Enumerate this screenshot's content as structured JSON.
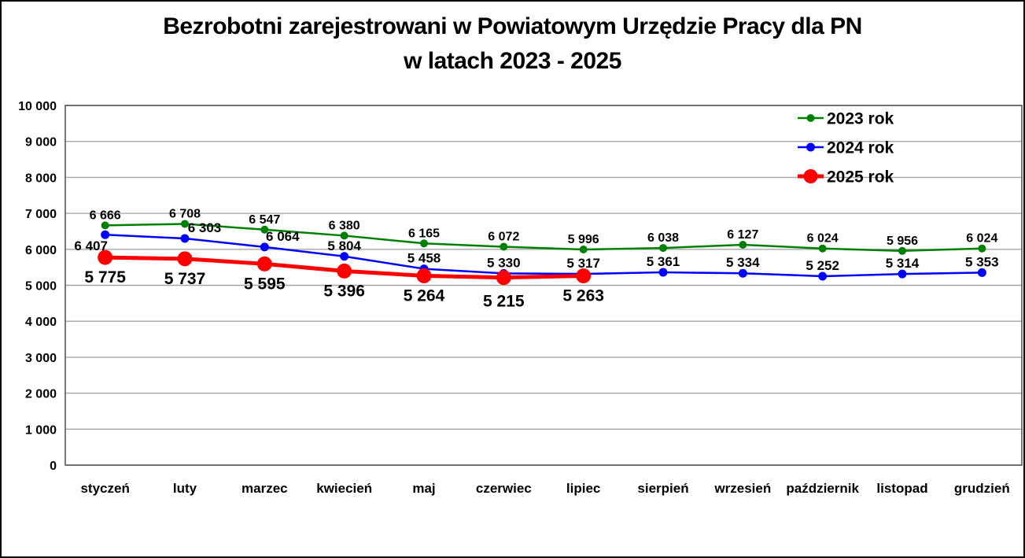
{
  "page": {
    "background_color": "#FFFFFF",
    "frame_border_color": "#000000"
  },
  "title": {
    "line1": "Bezrobotni zarejestrowani w Powiatowym Urzędzie Pracy dla PN",
    "line2": "w latach 2023 - 2025"
  },
  "chart_data": {
    "type": "line",
    "title": "Bezrobotni zarejestrowani w Powiatowym Urzędzie Pracy dla PN w latach 2023 - 2025",
    "xlabel": "",
    "ylabel": "",
    "ylim": [
      0,
      10000
    ],
    "ytick_step": 1000,
    "ytick_labels": [
      "0",
      "1 000",
      "2 000",
      "3 000",
      "4 000",
      "5 000",
      "6 000",
      "7 000",
      "8 000",
      "9 000",
      "10 000"
    ],
    "grid": true,
    "gridline_color": "#A6A6A6",
    "plot_border_color": "#595959",
    "legend_position": "top-right",
    "number_format": "space-thousands",
    "categories": [
      "styczeń",
      "luty",
      "marzec",
      "kwiecień",
      "maj",
      "czerwiec",
      "lipiec",
      "sierpień",
      "wrzesień",
      "październik",
      "listopad",
      "grudzień"
    ],
    "series": [
      {
        "name": "2023 rok",
        "color": "#008000",
        "values": [
          6666,
          6708,
          6547,
          6380,
          6165,
          6072,
          5996,
          6038,
          6127,
          6024,
          5956,
          6024
        ],
        "value_labels": [
          "6 666",
          "6 708",
          "6 547",
          "6 380",
          "6 165",
          "6 072",
          "5 996",
          "6 038",
          "6 127",
          "6 024",
          "5 956",
          "6 024"
        ],
        "marker_radius": 5,
        "line_width": 2.5,
        "label_font_size": 16,
        "label_default_dx": 0,
        "label_default_dy": -8,
        "label_offsets": []
      },
      {
        "name": "2024 rok",
        "color": "#0000FF",
        "values": [
          6407,
          6303,
          6064,
          5804,
          5458,
          5330,
          5317,
          5361,
          5334,
          5252,
          5314,
          5353
        ],
        "value_labels": [
          "6 407",
          "6 303",
          "6 064",
          "5 804",
          "5 458",
          "5 330",
          "5 317",
          "5 361",
          "5 334",
          "5 252",
          "5 314",
          "5 353"
        ],
        "marker_radius": 5.5,
        "line_width": 2.5,
        "label_font_size": 17,
        "label_default_dx": 0,
        "label_default_dy": -8,
        "label_offsets": [
          {
            "i": 0,
            "dx": -18,
            "dy": 20
          },
          {
            "i": 1,
            "dx": 25,
            "dy": -8
          },
          {
            "i": 2,
            "dx": 23,
            "dy": -8
          }
        ]
      },
      {
        "name": "2025 rok",
        "color": "#FF0000",
        "values": [
          5775,
          5737,
          5595,
          5396,
          5264,
          5215,
          5263
        ],
        "value_labels": [
          "5 775",
          "5 737",
          "5 595",
          "5 396",
          "5 264",
          "5 215",
          "5 263"
        ],
        "marker_radius": 9.5,
        "line_width": 5,
        "label_font_size": 21,
        "label_default_dx": 0,
        "label_default_dy": 32,
        "label_offsets": [
          {
            "i": 5,
            "dy": 37
          }
        ]
      }
    ],
    "legend": {
      "entries": [
        "2023 rok",
        "2024 rok",
        "2025 rok"
      ],
      "font_size": 21
    }
  }
}
